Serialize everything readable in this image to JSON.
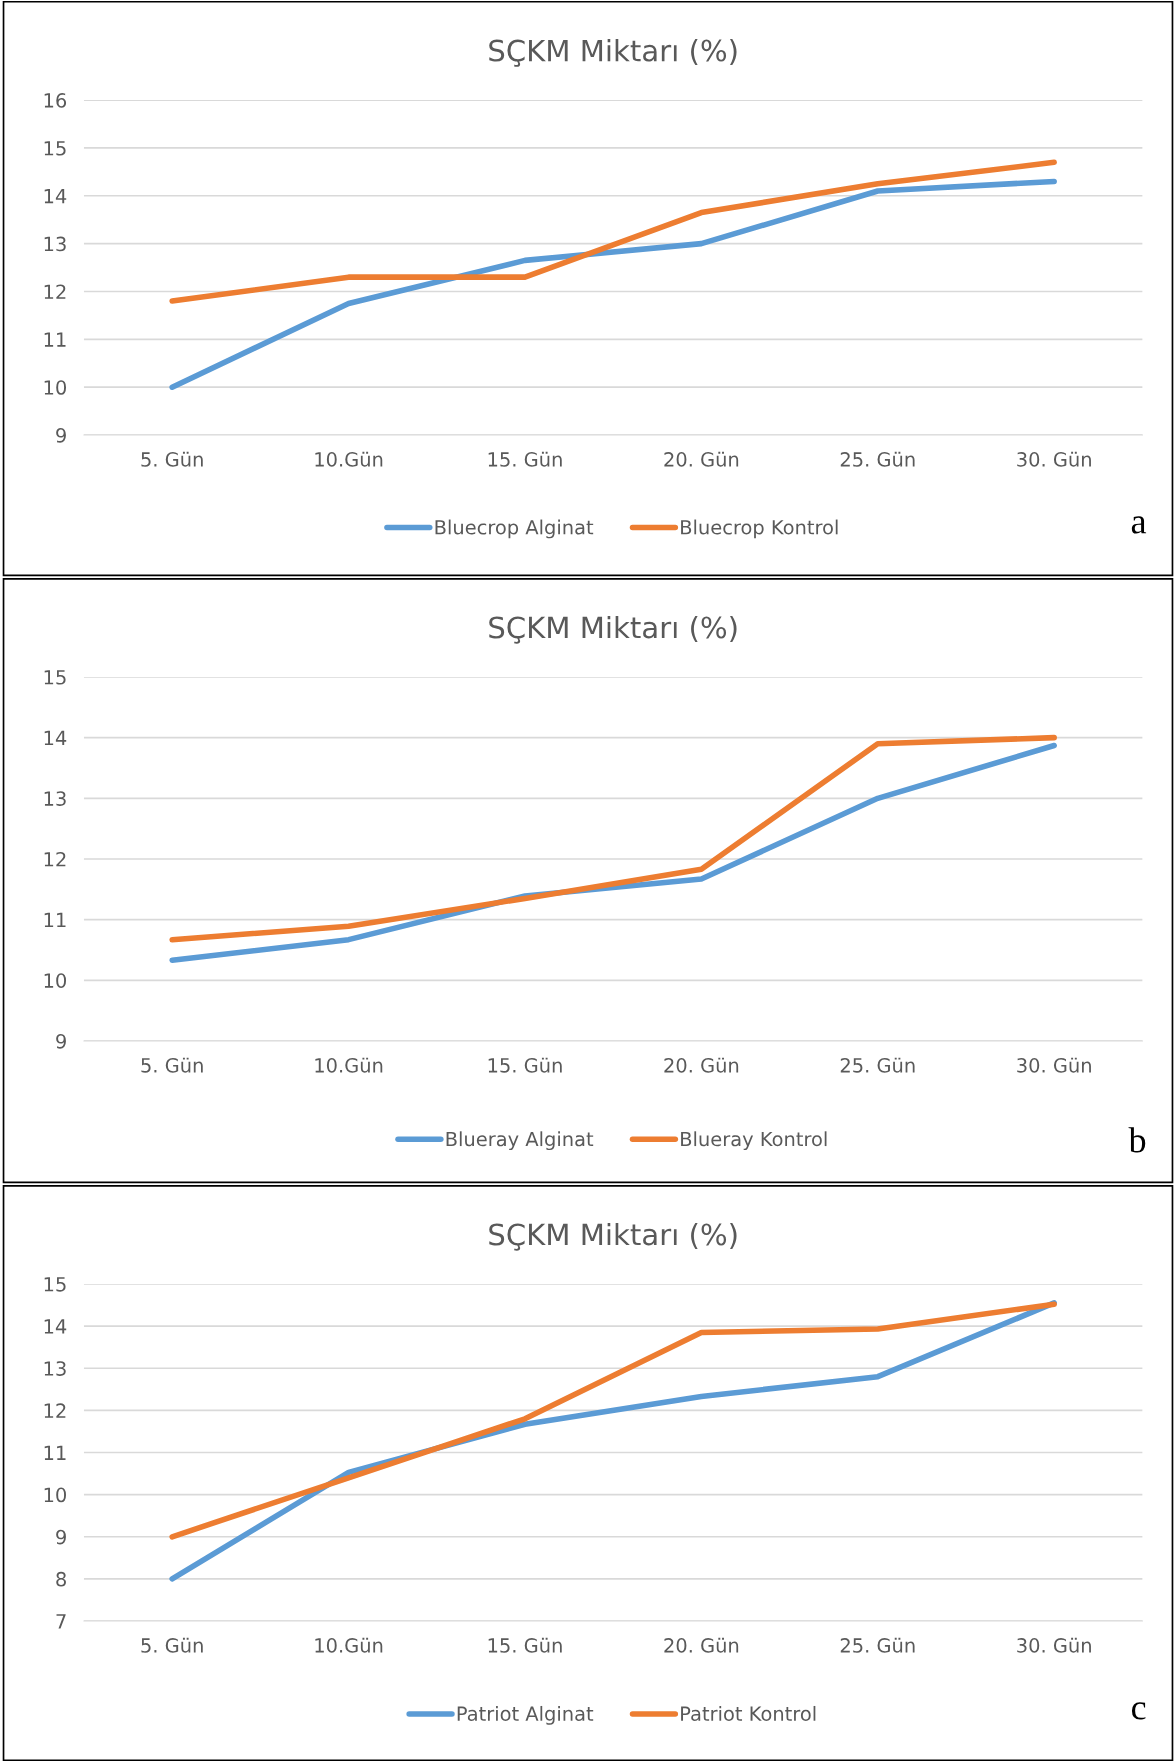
{
  "chart_data": [
    {
      "type": "line",
      "title": "SÇKM Miktarı (%)",
      "categories": [
        "5. Gün",
        "10.Gün",
        "15. Gün",
        "20. Gün",
        "25. Gün",
        "30. Gün"
      ],
      "series": [
        {
          "name": "Bluecrop Alginat",
          "color": "#5b9bd5",
          "values": [
            10.0,
            11.75,
            12.65,
            13.0,
            14.1,
            14.3
          ]
        },
        {
          "name": "Bluecrop Kontrol",
          "color": "#ed7d31",
          "values": [
            11.8,
            12.3,
            12.3,
            13.65,
            14.25,
            14.7
          ]
        }
      ],
      "ylim": [
        9,
        16
      ],
      "yticks": [
        9,
        10,
        11,
        12,
        13,
        14,
        15,
        16
      ],
      "grid": "y",
      "legend": "bottom",
      "annotations": [
        "a"
      ]
    },
    {
      "type": "line",
      "title": "SÇKM Miktarı (%)",
      "categories": [
        "5. Gün",
        "10.Gün",
        "15. Gün",
        "20. Gün",
        "25. Gün",
        "30. Gün"
      ],
      "series": [
        {
          "name": "Blueray Alginat",
          "color": "#5b9bd5",
          "values": [
            10.33,
            10.67,
            11.39,
            11.67,
            13.0,
            13.87
          ]
        },
        {
          "name": "Blueray Kontrol",
          "color": "#ed7d31",
          "values": [
            10.67,
            10.89,
            11.35,
            11.83,
            13.9,
            14.0
          ]
        }
      ],
      "ylim": [
        9,
        15
      ],
      "yticks": [
        9,
        10,
        11,
        12,
        13,
        14,
        15
      ],
      "grid": "y",
      "legend": "bottom",
      "annotations": [
        "b"
      ]
    },
    {
      "type": "line",
      "title": "SÇKM Miktarı (%)",
      "categories": [
        "5. Gün",
        "10.Gün",
        "15. Gün",
        "20. Gün",
        "25. Gün",
        "30. Gün"
      ],
      "series": [
        {
          "name": "Patriot Alginat",
          "color": "#5b9bd5",
          "values": [
            8.0,
            10.53,
            11.67,
            12.33,
            12.8,
            14.55
          ]
        },
        {
          "name": "Patriot Kontrol",
          "color": "#ed7d31",
          "values": [
            9.0,
            10.4,
            11.8,
            13.85,
            13.93,
            14.52
          ]
        }
      ],
      "ylim": [
        7,
        15
      ],
      "yticks": [
        7,
        8,
        9,
        10,
        11,
        12,
        13,
        14,
        15
      ],
      "grid": "y",
      "legend": "bottom",
      "annotations": [
        "c"
      ]
    }
  ]
}
